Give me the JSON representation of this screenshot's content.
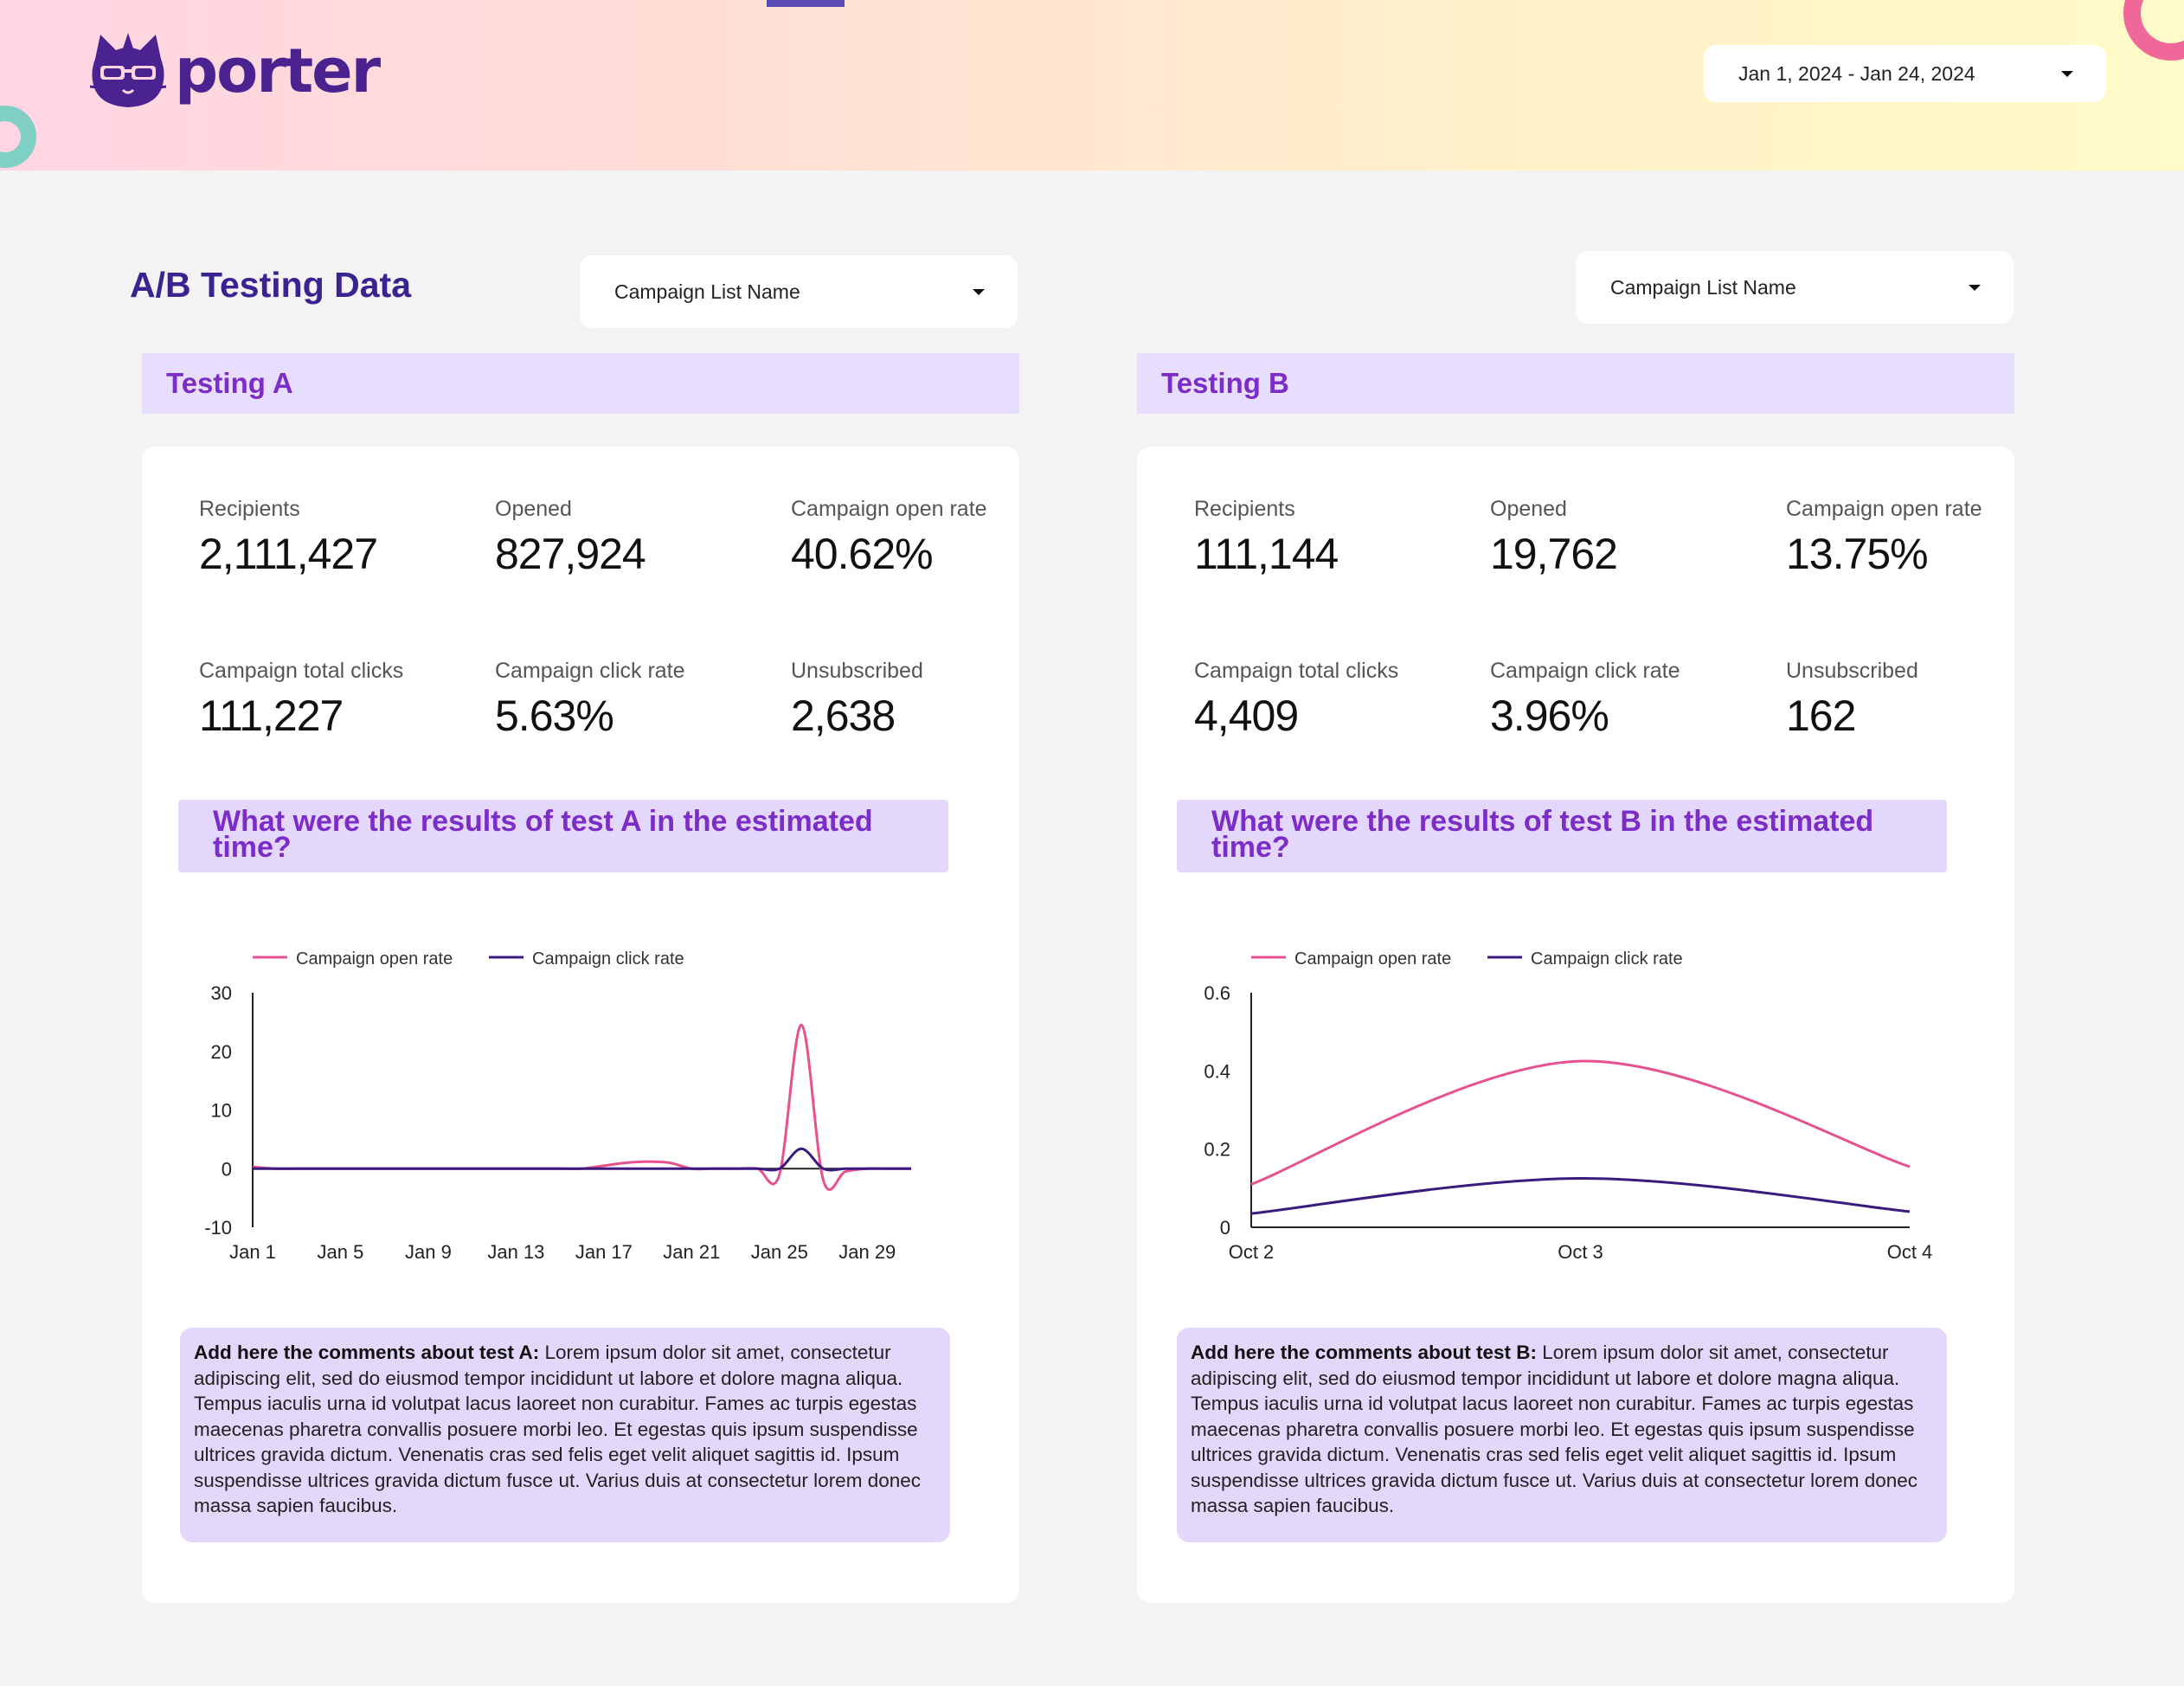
{
  "header": {
    "brand": "porter",
    "date_range": "Jan 1, 2024 - Jan 24, 2024"
  },
  "page": {
    "title": "A/B Testing Data"
  },
  "filters": {
    "a_label": "Campaign List Name",
    "b_label": "Campaign List Name"
  },
  "colors": {
    "accent": "#7d2dc7",
    "open_rate": "#e8518f",
    "click_rate": "#3b1a7e"
  },
  "test_a": {
    "title": "Testing A",
    "metrics": [
      {
        "label": "Recipients",
        "value": "2,111,427"
      },
      {
        "label": "Opened",
        "value": "827,924"
      },
      {
        "label": "Campaign open rate",
        "value": "40.62%"
      },
      {
        "label": "Campaign total clicks",
        "value": "111,227"
      },
      {
        "label": "Campaign click rate",
        "value": "5.63%"
      },
      {
        "label": "Unsubscribed",
        "value": "2,638"
      }
    ],
    "question": "What were the results of test A in the estimated time?",
    "comment_label": "Add here the comments about test A:",
    "comment_text": " Lorem ipsum dolor sit amet, consectetur adipiscing elit, sed do eiusmod tempor incididunt ut labore et dolore magna aliqua. Tempus iaculis urna id volutpat lacus laoreet non curabitur. Fames ac turpis egestas maecenas pharetra convallis posuere morbi leo. Et egestas quis ipsum suspendisse ultrices gravida dictum. Venenatis cras sed felis eget velit aliquet sagittis id. Ipsum suspendisse ultrices gravida dictum fusce ut. Varius duis at consectetur lorem donec massa sapien faucibus."
  },
  "test_b": {
    "title": "Testing B",
    "metrics": [
      {
        "label": "Recipients",
        "value": "111,144"
      },
      {
        "label": "Opened",
        "value": "19,762"
      },
      {
        "label": "Campaign open rate",
        "value": "13.75%"
      },
      {
        "label": "Campaign total clicks",
        "value": "4,409"
      },
      {
        "label": "Campaign click rate",
        "value": "3.96%"
      },
      {
        "label": "Unsubscribed",
        "value": "162"
      }
    ],
    "question": "What were the results of test B in the estimated time?",
    "comment_label": "Add here the comments about test B:",
    "comment_text": " Lorem ipsum dolor sit amet, consectetur adipiscing elit, sed do eiusmod tempor incididunt ut labore et dolore magna aliqua. Tempus iaculis urna id volutpat lacus laoreet non curabitur. Fames ac turpis egestas maecenas pharetra convallis posuere morbi leo. Et egestas quis ipsum suspendisse ultrices gravida dictum. Venenatis cras sed felis eget velit aliquet sagittis id. Ipsum suspendisse ultrices gravida dictum fusce ut. Varius duis at consectetur lorem donec massa sapien faucibus."
  },
  "chart_data": [
    {
      "type": "line",
      "title": "What were the results of test A in the estimated time?",
      "xlabel": "",
      "ylabel": "",
      "x": [
        1,
        2,
        3,
        4,
        5,
        6,
        7,
        8,
        9,
        10,
        11,
        12,
        13,
        14,
        15,
        16,
        17,
        18,
        19,
        20,
        21,
        22,
        23,
        24,
        25,
        26,
        27,
        28,
        29,
        30,
        31
      ],
      "x_ticks": [
        1,
        5,
        9,
        13,
        17,
        21,
        25,
        29
      ],
      "x_tick_labels": [
        "Jan 1",
        "Jan 5",
        "Jan 9",
        "Jan 13",
        "Jan 17",
        "Jan 21",
        "Jan 25",
        "Jan 29"
      ],
      "ylim": [
        -10,
        30
      ],
      "y_ticks": [
        -10,
        0,
        10,
        20,
        30
      ],
      "legend": "top-left",
      "series": [
        {
          "name": "Campaign open rate",
          "color": "#e8518f",
          "values": [
            0.3,
            0,
            0,
            0,
            0,
            0,
            0,
            0,
            0,
            0,
            0,
            0,
            0,
            0,
            0,
            0,
            0.5,
            1,
            1.2,
            1,
            0,
            0,
            0,
            0,
            -1,
            24.5,
            -2,
            -0.5,
            0,
            0,
            0
          ]
        },
        {
          "name": "Campaign click rate",
          "color": "#3b1a7e",
          "values": [
            0,
            0,
            0,
            0,
            0,
            0,
            0,
            0,
            0,
            0,
            0,
            0,
            0,
            0,
            0,
            0,
            0,
            0,
            0,
            0,
            0,
            0,
            0,
            0,
            0,
            3.4,
            0,
            0,
            0,
            0,
            0
          ]
        }
      ]
    },
    {
      "type": "line",
      "title": "What were the results of test B in the estimated time?",
      "xlabel": "",
      "ylabel": "",
      "x": [
        0,
        1,
        2
      ],
      "x_tick_labels": [
        "Oct 2",
        "Oct 3",
        "Oct 4"
      ],
      "ylim": [
        0,
        0.6
      ],
      "y_ticks": [
        0,
        0.2,
        0.4,
        0.6
      ],
      "legend": "top-left",
      "series": [
        {
          "name": "Campaign open rate",
          "color": "#e8518f",
          "values": [
            0.11,
            0.425,
            0.155
          ]
        },
        {
          "name": "Campaign click rate",
          "color": "#3b1a7e",
          "values": [
            0.035,
            0.125,
            0.04
          ]
        }
      ]
    }
  ]
}
